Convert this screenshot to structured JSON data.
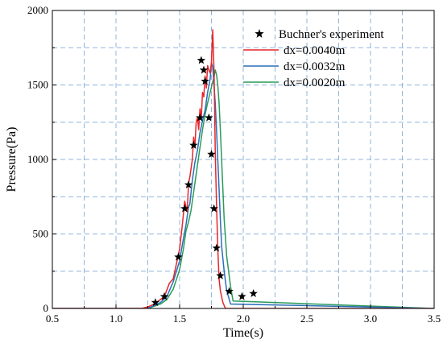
{
  "chart_data": {
    "type": "line",
    "xlabel": "Time(s)",
    "ylabel": "Pressure(Pa)",
    "xlim": [
      0.5,
      3.5
    ],
    "ylim": [
      0,
      2000
    ],
    "xticks": [
      "0.5",
      "1.0",
      "1.5",
      "2.0",
      "2.5",
      "3.0",
      "3.5"
    ],
    "yticks": [
      "0",
      "500",
      "1000",
      "1500",
      "2000"
    ],
    "grid": true,
    "legend_position": "top-right",
    "colors": {
      "experiment": "#000000",
      "dx_0040": "#e8262a",
      "dx_0032": "#2a6eb8",
      "dx_0020": "#2a9a5a",
      "grid": "#8fb4dc"
    },
    "experiment": {
      "name": "Buchner's experiment",
      "marker": "star",
      "points": [
        [
          1.31,
          40
        ],
        [
          1.38,
          80
        ],
        [
          1.49,
          345
        ],
        [
          1.54,
          670
        ],
        [
          1.57,
          830
        ],
        [
          1.61,
          1095
        ],
        [
          1.66,
          1280
        ],
        [
          1.67,
          1665
        ],
        [
          1.69,
          1600
        ],
        [
          1.7,
          1525
        ],
        [
          1.73,
          1280
        ],
        [
          1.75,
          1035
        ],
        [
          1.77,
          670
        ],
        [
          1.79,
          405
        ],
        [
          1.82,
          220
        ],
        [
          1.89,
          115
        ],
        [
          1.99,
          80
        ],
        [
          2.08,
          100
        ]
      ]
    },
    "series": [
      {
        "name": "dx=0.0040m",
        "x": [
          0.5,
          1.2,
          1.25,
          1.3,
          1.35,
          1.38,
          1.42,
          1.45,
          1.48,
          1.5,
          1.52,
          1.54,
          1.56,
          1.57,
          1.58,
          1.6,
          1.61,
          1.62,
          1.63,
          1.64,
          1.65,
          1.66,
          1.67,
          1.68,
          1.69,
          1.7,
          1.71,
          1.72,
          1.73,
          1.74,
          1.75,
          1.76,
          1.765,
          1.77,
          1.775,
          1.78,
          1.79,
          1.8,
          1.81,
          1.82,
          1.84,
          1.86,
          3.5
        ],
        "y": [
          0,
          0,
          10,
          30,
          60,
          80,
          170,
          200,
          320,
          400,
          550,
          720,
          650,
          840,
          880,
          1000,
          1150,
          1080,
          1250,
          1280,
          1200,
          1340,
          1270,
          1450,
          1420,
          1560,
          1480,
          1630,
          1600,
          1580,
          1650,
          1870,
          1750,
          1600,
          1350,
          1050,
          700,
          400,
          200,
          120,
          40,
          0,
          0
        ]
      },
      {
        "name": "dx=0.0032m",
        "x": [
          0.5,
          1.25,
          1.3,
          1.35,
          1.4,
          1.45,
          1.5,
          1.53,
          1.55,
          1.57,
          1.58,
          1.6,
          1.62,
          1.64,
          1.66,
          1.68,
          1.7,
          1.72,
          1.74,
          1.75,
          1.76,
          1.77,
          1.78,
          1.79,
          1.8,
          1.81,
          1.82,
          1.83,
          1.85,
          1.87,
          1.9,
          3.5
        ],
        "y": [
          0,
          0,
          20,
          40,
          80,
          180,
          320,
          470,
          560,
          680,
          700,
          860,
          980,
          1060,
          1180,
          1260,
          1330,
          1450,
          1540,
          1650,
          1620,
          1500,
          1380,
          1200,
          1000,
          800,
          600,
          420,
          250,
          120,
          30,
          0
        ]
      },
      {
        "name": "dx=0.0020m",
        "x": [
          0.5,
          1.25,
          1.3,
          1.35,
          1.4,
          1.45,
          1.5,
          1.53,
          1.55,
          1.57,
          1.59,
          1.6,
          1.62,
          1.64,
          1.66,
          1.68,
          1.7,
          1.72,
          1.74,
          1.76,
          1.77,
          1.78,
          1.79,
          1.8,
          1.81,
          1.82,
          1.83,
          1.84,
          1.85,
          1.87,
          1.9,
          1.92,
          3.5
        ],
        "y": [
          0,
          0,
          15,
          30,
          60,
          130,
          260,
          400,
          520,
          580,
          660,
          720,
          840,
          960,
          1080,
          1200,
          1300,
          1380,
          1450,
          1520,
          1550,
          1600,
          1570,
          1500,
          1380,
          1200,
          1000,
          800,
          600,
          350,
          150,
          50,
          0
        ]
      }
    ]
  }
}
